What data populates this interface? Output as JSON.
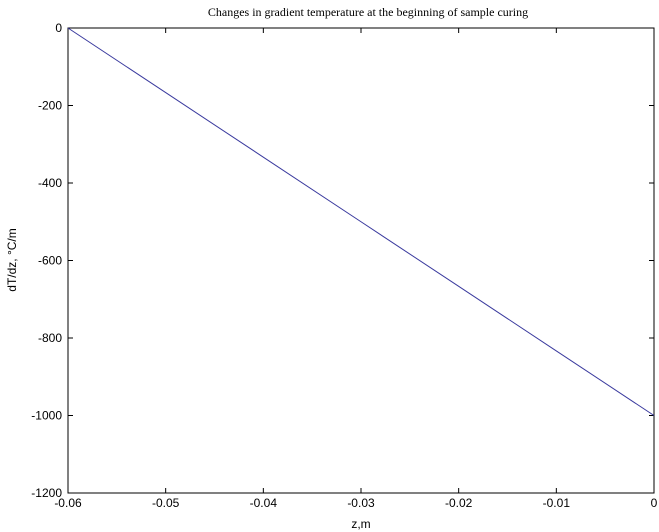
{
  "chart_data": {
    "type": "line",
    "title": "Changes in gradient temperature at the beginning of sample curing",
    "xlabel": "z,m",
    "ylabel": "dT/dz, °C/m",
    "xlim": [
      -0.06,
      0
    ],
    "ylim": [
      -1200,
      0
    ],
    "x_ticks": [
      "-0.06",
      "-0.05",
      "-0.04",
      "-0.03",
      "-0.02",
      "-0.01",
      "0"
    ],
    "y_ticks": [
      "0",
      "-200",
      "-400",
      "-600",
      "-800",
      "-1000",
      "-1200"
    ],
    "x_tick_values": [
      -0.06,
      -0.05,
      -0.04,
      -0.03,
      -0.02,
      -0.01,
      0
    ],
    "y_tick_values": [
      0,
      -200,
      -400,
      -600,
      -800,
      -1000,
      -1200
    ],
    "grid": false,
    "series": [
      {
        "color": "#3a3a9e",
        "x": [
          -0.06,
          -0.05,
          -0.04,
          -0.03,
          -0.02,
          -0.01,
          0
        ],
        "y": [
          0,
          -166.7,
          -333.3,
          -500,
          -666.7,
          -833.3,
          -1000
        ]
      }
    ]
  }
}
